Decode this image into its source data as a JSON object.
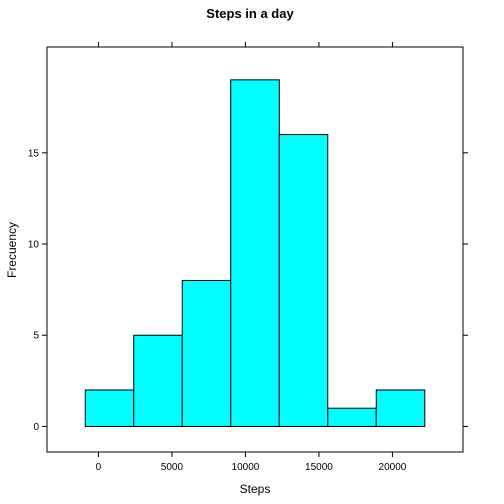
{
  "chart_data": {
    "type": "bar",
    "title": "Steps in a day",
    "xlabel": "Steps",
    "ylabel": "Frecuency",
    "bin_edges": [
      -900,
      2400,
      5700,
      9000,
      12300,
      15600,
      18900,
      22200
    ],
    "values": [
      2,
      5,
      8,
      19,
      16,
      1,
      2
    ],
    "xlim": [
      -3500,
      24800
    ],
    "ylim": [
      -1.4,
      20.8
    ],
    "x_ticks": [
      0,
      5000,
      10000,
      15000,
      20000
    ],
    "y_ticks": [
      0,
      5,
      10,
      15
    ],
    "bar_color": "#00ffff",
    "edge_color": "#000000",
    "grid": false
  }
}
